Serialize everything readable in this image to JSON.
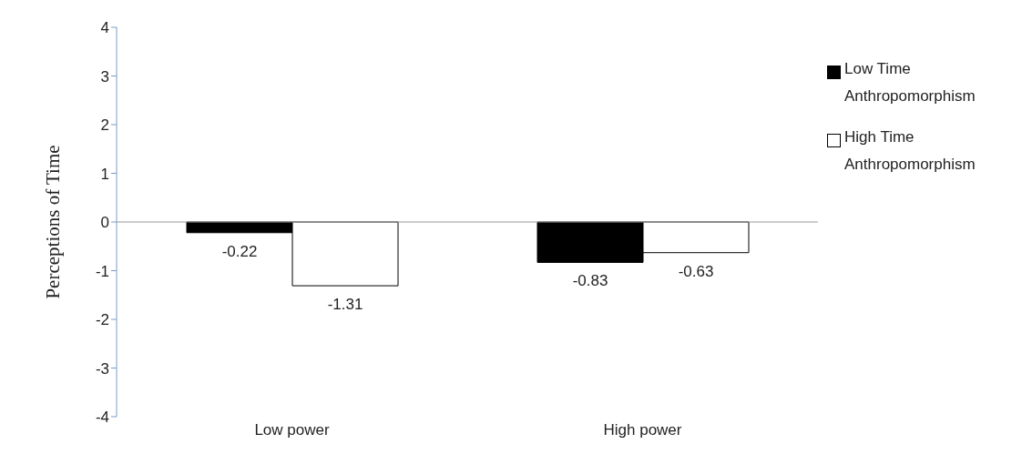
{
  "chart_data": {
    "type": "bar",
    "ylabel": "Perceptions of Time",
    "categories": [
      "Low power",
      "High power"
    ],
    "series": [
      {
        "name": "Low Time Anthropomorphism",
        "color": "#000000",
        "values": [
          -0.22,
          -0.83
        ]
      },
      {
        "name": "High Time Anthropomorphism",
        "color": "#ffffff",
        "values": [
          -1.31,
          -0.63
        ]
      }
    ],
    "ylim": [
      -4,
      4
    ],
    "yticks": [
      -4,
      -3,
      -2,
      -1,
      0,
      1,
      2,
      3,
      4
    ],
    "legend": "top right",
    "data_labels": true
  }
}
